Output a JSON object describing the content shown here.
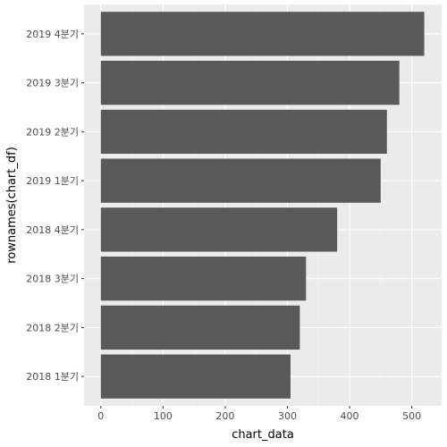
{
  "chart_data": {
    "type": "bar",
    "orientation": "horizontal",
    "title": "",
    "xlabel": "chart_data",
    "ylabel": "rownames(chart_df)",
    "categories": [
      "2018 1분기",
      "2018 2분기",
      "2018 3분기",
      "2018 4분기",
      "2019 1분기",
      "2019 2분기",
      "2019 3분기",
      "2019 4분기"
    ],
    "values": [
      305,
      320,
      330,
      380,
      450,
      460,
      480,
      520
    ],
    "xlim": [
      -27,
      548
    ],
    "xticks": [
      0,
      100,
      200,
      300,
      400,
      500
    ],
    "xtick_labels": [
      "0",
      "100",
      "200",
      "300",
      "400",
      "500"
    ],
    "grid": true,
    "colors": {
      "bar": "#595959",
      "panel": "#ebebeb",
      "grid_major": "#ffffff",
      "grid_minor": "#f5f5f5",
      "tick_text": "#4d4d4d",
      "axis_title": "#000000"
    }
  }
}
